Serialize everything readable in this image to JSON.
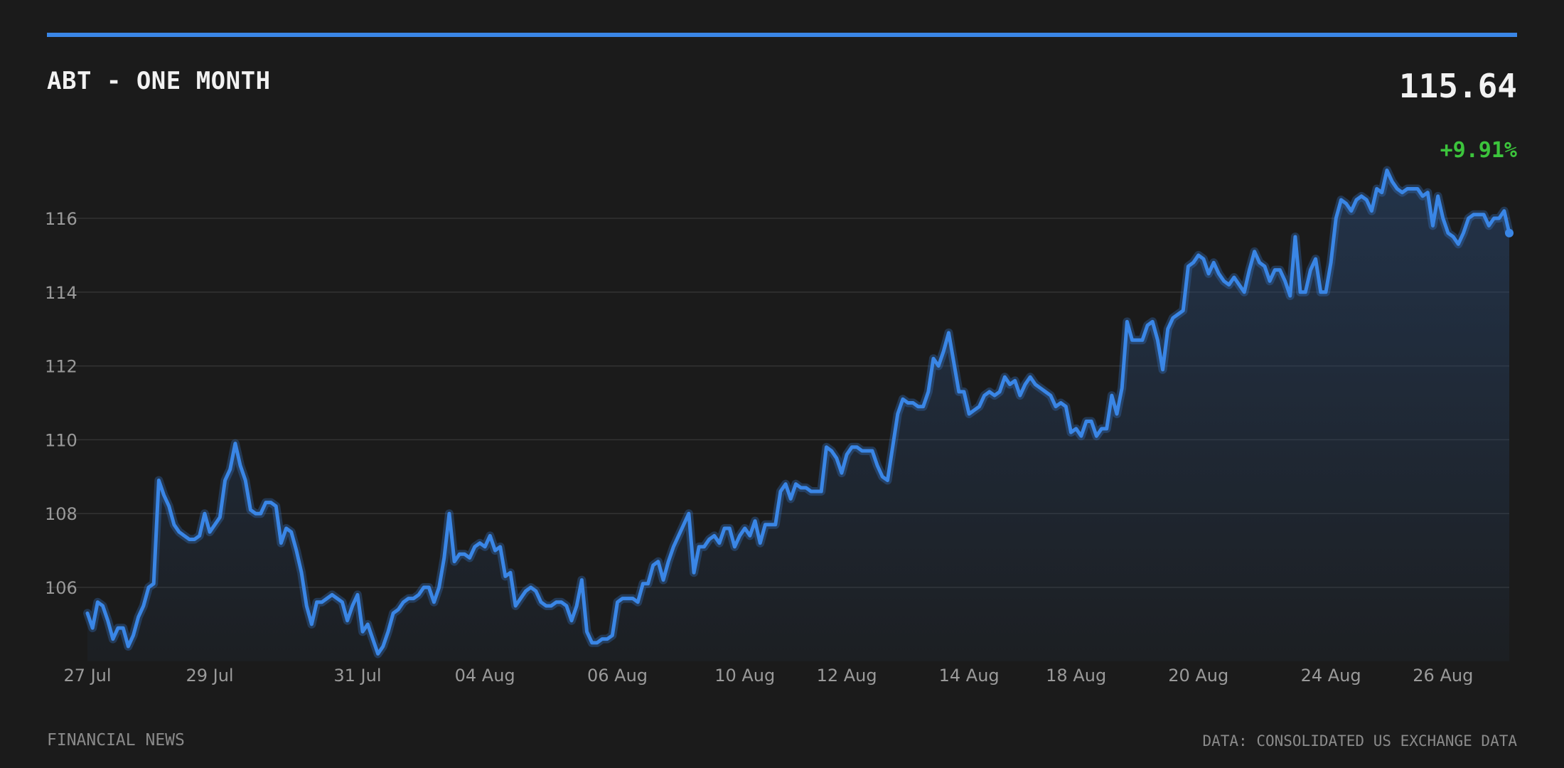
{
  "header": {
    "title": "ABT - ONE MONTH",
    "price": "115.64",
    "change": "+9.91%"
  },
  "footer": {
    "source_left": "FINANCIAL NEWS",
    "source_right": "DATA: CONSOLIDATED US EXCHANGE DATA"
  },
  "colors": {
    "background": "#1b1b1b",
    "accent": "#3a86e6",
    "positive": "#3cc43c",
    "grid": "#333333",
    "text_muted": "#9a9a9a"
  },
  "chart_data": {
    "type": "area",
    "title": "ABT - ONE MONTH",
    "xlabel": "",
    "ylabel": "",
    "ylim": [
      104,
      117.3
    ],
    "grid": true,
    "y_ticks": [
      106,
      108,
      110,
      112,
      114,
      116
    ],
    "x_ticks": [
      {
        "label": "27 Jul",
        "index": 0
      },
      {
        "label": "29 Jul",
        "index": 24
      },
      {
        "label": "31 Jul",
        "index": 53
      },
      {
        "label": "04 Aug",
        "index": 78
      },
      {
        "label": "06 Aug",
        "index": 104
      },
      {
        "label": "10 Aug",
        "index": 129
      },
      {
        "label": "12 Aug",
        "index": 149
      },
      {
        "label": "14 Aug",
        "index": 173
      },
      {
        "label": "18 Aug",
        "index": 194
      },
      {
        "label": "20 Aug",
        "index": 218
      },
      {
        "label": "24 Aug",
        "index": 244
      },
      {
        "label": "26 Aug",
        "index": 266
      }
    ],
    "series": [
      {
        "values": [
          105.3,
          104.9,
          105.6,
          105.5,
          105.1,
          104.6,
          104.9,
          104.9,
          104.4,
          104.7,
          105.2,
          105.5,
          106.0,
          106.1,
          108.9,
          108.5,
          108.2,
          107.7,
          107.5,
          107.4,
          107.3,
          107.3,
          107.4,
          108.0,
          107.5,
          107.7,
          107.9,
          108.9,
          109.2,
          109.9,
          109.3,
          108.9,
          108.1,
          108.0,
          108.0,
          108.3,
          108.3,
          108.2,
          107.2,
          107.6,
          107.5,
          107.0,
          106.4,
          105.5,
          105.0,
          105.6,
          105.6,
          105.7,
          105.8,
          105.7,
          105.6,
          105.1,
          105.5,
          105.8,
          104.8,
          105.0,
          104.6,
          104.2,
          104.4,
          104.8,
          105.3,
          105.4,
          105.6,
          105.7,
          105.7,
          105.8,
          106.0,
          106.0,
          105.6,
          106.0,
          106.8,
          108.0,
          106.7,
          106.9,
          106.9,
          106.8,
          107.1,
          107.2,
          107.1,
          107.4,
          107.0,
          107.1,
          106.3,
          106.4,
          105.5,
          105.7,
          105.9,
          106.0,
          105.9,
          105.6,
          105.5,
          105.5,
          105.6,
          105.6,
          105.5,
          105.1,
          105.5,
          106.2,
          104.8,
          104.5,
          104.5,
          104.6,
          104.6,
          104.7,
          105.6,
          105.7,
          105.7,
          105.7,
          105.6,
          106.1,
          106.1,
          106.6,
          106.7,
          106.2,
          106.7,
          107.1,
          107.4,
          107.7,
          108.0,
          106.4,
          107.1,
          107.1,
          107.3,
          107.4,
          107.2,
          107.6,
          107.6,
          107.1,
          107.4,
          107.6,
          107.4,
          107.8,
          107.2,
          107.7,
          107.7,
          107.7,
          108.6,
          108.8,
          108.4,
          108.8,
          108.7,
          108.7,
          108.6,
          108.6,
          108.6,
          109.8,
          109.7,
          109.5,
          109.1,
          109.6,
          109.8,
          109.8,
          109.7,
          109.7,
          109.7,
          109.3,
          109.0,
          108.9,
          109.8,
          110.7,
          111.1,
          111.0,
          111.0,
          110.9,
          110.9,
          111.3,
          112.2,
          112.0,
          112.4,
          112.9,
          112.1,
          111.3,
          111.3,
          110.7,
          110.8,
          110.9,
          111.2,
          111.3,
          111.2,
          111.3,
          111.7,
          111.5,
          111.6,
          111.2,
          111.5,
          111.7,
          111.5,
          111.4,
          111.3,
          111.2,
          110.9,
          111.0,
          110.9,
          110.2,
          110.3,
          110.1,
          110.5,
          110.5,
          110.1,
          110.3,
          110.3,
          111.2,
          110.7,
          111.4,
          113.2,
          112.7,
          112.7,
          112.7,
          113.1,
          113.2,
          112.7,
          111.9,
          113.0,
          113.3,
          113.4,
          113.5,
          114.7,
          114.8,
          115.0,
          114.9,
          114.5,
          114.8,
          114.5,
          114.3,
          114.2,
          114.4,
          114.2,
          114.0,
          114.6,
          115.1,
          114.8,
          114.7,
          114.3,
          114.6,
          114.6,
          114.3,
          113.9,
          115.5,
          114.0,
          114.0,
          114.6,
          114.9,
          114.0,
          114.0,
          114.8,
          116.0,
          116.5,
          116.4,
          116.2,
          116.5,
          116.6,
          116.5,
          116.2,
          116.8,
          116.7,
          117.3,
          117.0,
          116.8,
          116.7,
          116.8,
          116.8,
          116.8,
          116.6,
          116.7,
          115.8,
          116.6,
          116.0,
          115.6,
          115.5,
          115.3,
          115.6,
          116.0,
          116.1,
          116.1,
          116.1,
          115.8,
          116.0,
          116.0,
          116.2,
          115.6
        ]
      }
    ]
  }
}
